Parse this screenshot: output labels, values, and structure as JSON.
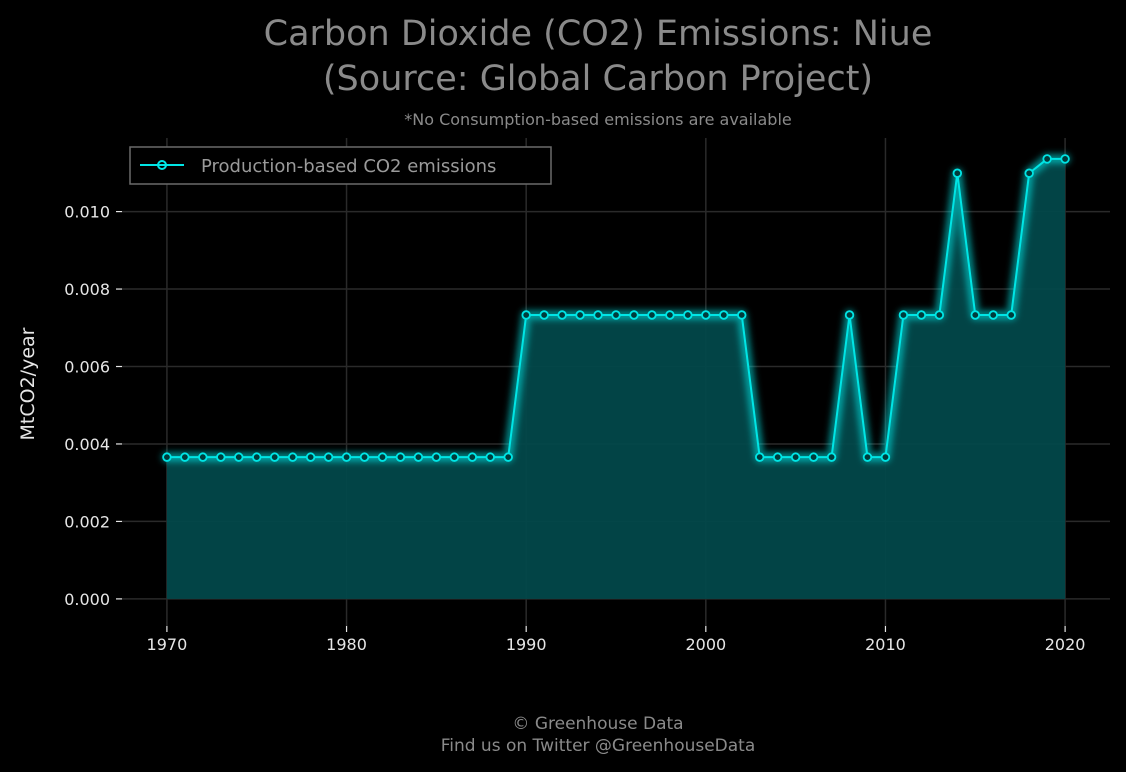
{
  "header": {
    "title_line1": "Carbon Dioxide (CO2) Emissions: Niue",
    "title_line2": "(Source: Global Carbon Project)",
    "subtitle": "*No Consumption-based emissions are available"
  },
  "footer": {
    "line1": "© Greenhouse Data",
    "line2": "Find us on Twitter @GreenhouseData"
  },
  "colors": {
    "background": "#000000",
    "series": "#00e5e5",
    "fill": "#02484a",
    "grid": "#2a2a2a",
    "text": "#e6e6e6",
    "muted": "#8a8a8a"
  },
  "chart_data": {
    "type": "area",
    "title": "Carbon Dioxide (CO2) Emissions: Niue (Source: Global Carbon Project)",
    "xlabel": "",
    "ylabel": "MtCO2/year",
    "xlim": [
      1967.5,
      2022.5
    ],
    "ylim": [
      -0.0007,
      0.0119
    ],
    "x_ticks": [
      1970,
      1980,
      1990,
      2000,
      2010,
      2020
    ],
    "x_tick_labels": [
      "1970",
      "1980",
      "1990",
      "2000",
      "2010",
      "2020"
    ],
    "y_ticks": [
      0,
      0.002,
      0.004,
      0.006,
      0.008,
      0.01
    ],
    "y_tick_labels": [
      "0.000",
      "0.002",
      "0.004",
      "0.006",
      "0.008",
      "0.010"
    ],
    "grid": true,
    "legend_position": "top-left",
    "series": [
      {
        "name": "Production-based CO2 emissions",
        "x": [
          1970,
          1971,
          1972,
          1973,
          1974,
          1975,
          1976,
          1977,
          1978,
          1979,
          1980,
          1981,
          1982,
          1983,
          1984,
          1985,
          1986,
          1987,
          1988,
          1989,
          1990,
          1991,
          1992,
          1993,
          1994,
          1995,
          1996,
          1997,
          1998,
          1999,
          2000,
          2001,
          2002,
          2003,
          2004,
          2005,
          2006,
          2007,
          2008,
          2009,
          2010,
          2011,
          2012,
          2013,
          2014,
          2015,
          2016,
          2017,
          2018,
          2019,
          2020
        ],
        "values": [
          0.00366,
          0.00366,
          0.00366,
          0.00366,
          0.00366,
          0.00366,
          0.00366,
          0.00366,
          0.00366,
          0.00366,
          0.00366,
          0.00366,
          0.00366,
          0.00366,
          0.00366,
          0.00366,
          0.00366,
          0.00366,
          0.00366,
          0.00366,
          0.00733,
          0.00733,
          0.00733,
          0.00733,
          0.00733,
          0.00733,
          0.00733,
          0.00733,
          0.00733,
          0.00733,
          0.00733,
          0.00733,
          0.00733,
          0.00366,
          0.00366,
          0.00366,
          0.00366,
          0.00366,
          0.00733,
          0.00366,
          0.00366,
          0.00733,
          0.00733,
          0.00733,
          0.01099,
          0.00733,
          0.00733,
          0.00733,
          0.01099,
          0.01136,
          0.01136
        ]
      }
    ]
  }
}
